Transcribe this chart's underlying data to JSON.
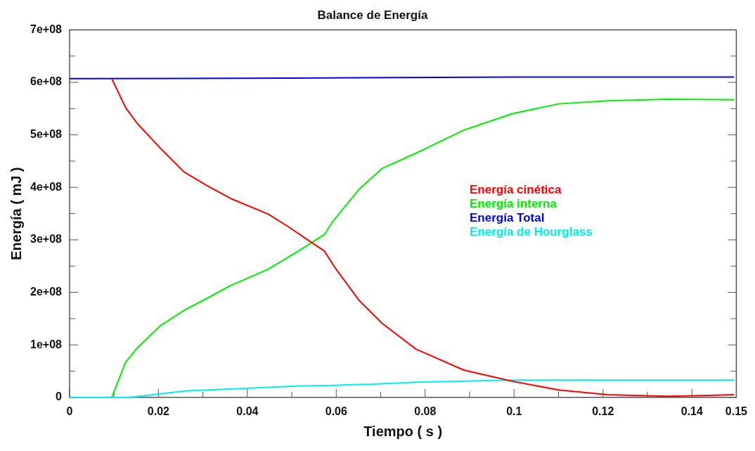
{
  "chart_data": {
    "type": "line",
    "title": "Balance de Energía",
    "xlabel": "Tiempo ( s )",
    "ylabel": "Energía ( mJ )",
    "xlim": [
      0,
      0.15
    ],
    "xticks": [
      0,
      {
        "value": 0.01,
        "label": null
      },
      0.02,
      {
        "value": 0.03,
        "label": null
      },
      0.04,
      {
        "value": 0.05,
        "label": null
      },
      0.06,
      {
        "value": 0.07,
        "label": null
      },
      0.08,
      {
        "value": 0.09,
        "label": null
      },
      0.1,
      {
        "value": 0.11,
        "label": null
      },
      0.12,
      {
        "value": 0.13,
        "label": null
      },
      0.14,
      0.15
    ],
    "ylim": [
      0,
      700000000.0
    ],
    "yticks": [
      0,
      {
        "value": 50000000.0,
        "label": null
      },
      {
        "value": 100000000.0,
        "label": "1e+08"
      },
      {
        "value": 150000000.0,
        "label": null
      },
      {
        "value": 200000000.0,
        "label": "2e+08"
      },
      {
        "value": 250000000.0,
        "label": null
      },
      {
        "value": 300000000.0,
        "label": "3e+08"
      },
      {
        "value": 350000000.0,
        "label": null
      },
      {
        "value": 400000000.0,
        "label": "4e+08"
      },
      {
        "value": 450000000.0,
        "label": null
      },
      {
        "value": 500000000.0,
        "label": "5e+08"
      },
      {
        "value": 550000000.0,
        "label": null
      },
      {
        "value": 600000000.0,
        "label": "6e+08"
      },
      {
        "value": 650000000.0,
        "label": null
      },
      {
        "value": 700000000.0,
        "label": "7e+08"
      }
    ],
    "grid": false,
    "legend": "center right",
    "marker": "none",
    "line_style": "solid",
    "series": [
      {
        "name": "Energía cinética",
        "color": "#ff0000",
        "x": [
          0.0095,
          0.0126,
          0.0153,
          0.0205,
          0.0258,
          0.031,
          0.0362,
          0.0447,
          0.0494,
          0.0546,
          0.0573,
          0.0598,
          0.0651,
          0.0703,
          0.0779,
          0.0887,
          0.0995,
          0.11,
          0.121,
          0.1345,
          0.1495
        ],
        "values": [
          607000000.0,
          552000000.0,
          521000000.0,
          474000000.0,
          429000000.0,
          403000000.0,
          379000000.0,
          349000000.0,
          324000000.0,
          294000000.0,
          279000000.0,
          246000000.0,
          185000000.0,
          141000000.0,
          92000000.0,
          52000000.0,
          31000000.0,
          14000000.0,
          5000000.0,
          2000000.0,
          5000000.0
        ]
      },
      {
        "name": "Energía interna",
        "color": "#00ee00",
        "x": [
          0.0095,
          0.0126,
          0.0153,
          0.0205,
          0.0258,
          0.031,
          0.0362,
          0.0447,
          0.0519,
          0.0573,
          0.0593,
          0.0651,
          0.0703,
          0.0779,
          0.0887,
          0.0995,
          0.11,
          0.121,
          0.1345,
          0.1495
        ],
        "values": [
          0,
          67000000.0,
          95000000.0,
          137000000.0,
          166000000.0,
          189000000.0,
          213000000.0,
          244000000.0,
          281000000.0,
          310000000.0,
          336000000.0,
          396000000.0,
          436000000.0,
          465000000.0,
          509000000.0,
          540000000.0,
          559000000.0,
          565000000.0,
          568000000.0,
          567000000.0
        ]
      },
      {
        "name": "Energía Total",
        "color": "#0000ee",
        "x": [
          0,
          0.05,
          0.1,
          0.1495
        ],
        "values": [
          607000000.0,
          608000000.0,
          610000000.0,
          610000000.0
        ]
      },
      {
        "name": "Energía de Hourglass",
        "color": "#00eeee",
        "x": [
          0,
          0.0137,
          0.0197,
          0.0258,
          0.0394,
          0.0519,
          0.0593,
          0.0672,
          0.0779,
          0.0995,
          0.121,
          0.1495
        ],
        "values": [
          0,
          0,
          6000000.0,
          12000000.0,
          17000000.0,
          22000000.0,
          23000000.0,
          25000000.0,
          29000000.0,
          33000000.0,
          33000000.0,
          33000000.0
        ]
      }
    ]
  }
}
